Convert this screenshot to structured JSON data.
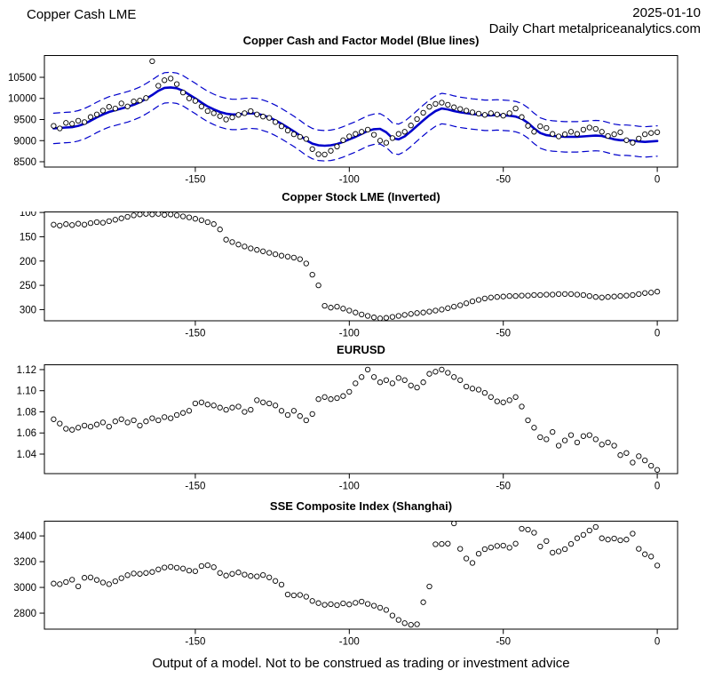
{
  "header": {
    "left_title": "Copper Cash LME",
    "date": "2025-01-10",
    "subtitle": "Daily Chart metalpriceanalytics.com"
  },
  "footer": {
    "disclaimer": "Output of a model. Not to be construed as trading or investment advice"
  },
  "colors": {
    "model_blue": "#0000CC",
    "point_stroke": "#000000",
    "axis": "#000000",
    "background": "#ffffff"
  },
  "chart_data": [
    {
      "type": "scatter",
      "title": "Copper Cash and Factor Model (Blue lines)",
      "x_start": -196,
      "x_step": 2,
      "xlim": [
        -199,
        6.6
      ],
      "ylim": [
        8374,
        11026
      ],
      "xticks": [
        -150,
        -100,
        -50,
        0
      ],
      "xtick_labels": [
        "-150",
        "-100",
        "-50",
        "0"
      ],
      "yticks": [
        8500,
        9000,
        9500,
        10000,
        10500
      ],
      "ytick_labels": [
        "8500",
        "9000",
        "9500",
        "10000",
        "10500"
      ],
      "grid": false,
      "legend": "none",
      "series": [
        {
          "name": "copper-cash-points",
          "type": "scatter",
          "color": "#000000",
          "values": [
            9350,
            9290,
            9420,
            9400,
            9470,
            9440,
            9560,
            9620,
            9710,
            9800,
            9760,
            9880,
            9810,
            9930,
            9950,
            10010,
            10880,
            10300,
            10430,
            10470,
            10340,
            10140,
            10000,
            9940,
            9810,
            9700,
            9650,
            9580,
            9500,
            9550,
            9610,
            9650,
            9700,
            9620,
            9570,
            9540,
            9440,
            9340,
            9240,
            9150,
            9090,
            9040,
            8800,
            8680,
            8670,
            8760,
            8860,
            9010,
            9100,
            9160,
            9210,
            9260,
            9140,
            9000,
            8950,
            9060,
            9160,
            9210,
            9360,
            9510,
            9660,
            9800,
            9870,
            9900,
            9850,
            9790,
            9750,
            9710,
            9670,
            9640,
            9610,
            9650,
            9620,
            9590,
            9650,
            9760,
            9560,
            9350,
            9210,
            9340,
            9300,
            9160,
            9100,
            9150,
            9210,
            9160,
            9260,
            9310,
            9280,
            9210,
            9110,
            9150,
            9200,
            9010,
            8950,
            9050,
            9150,
            9180,
            9200
          ]
        },
        {
          "name": "factor-model-line",
          "type": "line",
          "color": "#0000CC",
          "values": [
            9290,
            9300,
            9310,
            9320,
            9350,
            9400,
            9470,
            9550,
            9620,
            9680,
            9720,
            9760,
            9800,
            9850,
            9910,
            9990,
            10080,
            10180,
            10250,
            10260,
            10240,
            10180,
            10090,
            10000,
            9900,
            9810,
            9740,
            9680,
            9640,
            9620,
            9620,
            9640,
            9650,
            9640,
            9600,
            9550,
            9480,
            9400,
            9310,
            9220,
            9120,
            9010,
            8930,
            8890,
            8880,
            8890,
            8920,
            8970,
            9030,
            9090,
            9160,
            9230,
            9270,
            9280,
            9200,
            9060,
            9030,
            9100,
            9220,
            9350,
            9480,
            9600,
            9700,
            9760,
            9740,
            9700,
            9670,
            9650,
            9630,
            9615,
            9600,
            9600,
            9610,
            9600,
            9590,
            9570,
            9520,
            9420,
            9290,
            9180,
            9130,
            9110,
            9100,
            9090,
            9090,
            9090,
            9100,
            9110,
            9120,
            9110,
            9070,
            9030,
            9010,
            9010,
            9000,
            8980,
            8970,
            8980,
            8990
          ]
        },
        {
          "name": "confidence-band",
          "type": "band",
          "color": "#0000CC",
          "offset": 360,
          "base": "factor-model-line"
        }
      ]
    },
    {
      "type": "scatter",
      "title": "Copper Stock LME (Inverted)",
      "x_start": -196,
      "x_step": 2,
      "xlim": [
        -199,
        6.6
      ],
      "ylim": [
        323,
        98
      ],
      "y_inverted": true,
      "xticks": [
        -150,
        -100,
        -50,
        0
      ],
      "xtick_labels": [
        "-150",
        "-100",
        "-50",
        "0"
      ],
      "yticks": [
        100,
        150,
        200,
        250,
        300
      ],
      "ytick_labels": [
        "100",
        "150",
        "200",
        "250",
        "300"
      ],
      "grid": false,
      "legend": "none",
      "series": [
        {
          "name": "copper-stock-points",
          "type": "scatter",
          "color": "#000000",
          "values": [
            125,
            127,
            124,
            126,
            123,
            125,
            122,
            120,
            121,
            118,
            115,
            112,
            109,
            106,
            104,
            103,
            104,
            103,
            105,
            104,
            106,
            108,
            110,
            113,
            116,
            120,
            124,
            135,
            156,
            161,
            166,
            170,
            174,
            177,
            180,
            183,
            186,
            189,
            191,
            193,
            196,
            205,
            228,
            250,
            292,
            296,
            294,
            298,
            302,
            306,
            310,
            313,
            316,
            318,
            317,
            315,
            313,
            311,
            309,
            307,
            306,
            304,
            302,
            300,
            297,
            294,
            291,
            287,
            283,
            280,
            277,
            275,
            274,
            273,
            272,
            272,
            271,
            271,
            270,
            270,
            269,
            269,
            268,
            268,
            268,
            269,
            270,
            272,
            274,
            275,
            274,
            273,
            272,
            271,
            270,
            268,
            266,
            265,
            263
          ]
        }
      ]
    },
    {
      "type": "scatter",
      "title": "EURUSD",
      "x_start": -196,
      "x_step": 2,
      "xlim": [
        -199,
        6.6
      ],
      "ylim": [
        1.0215,
        1.125
      ],
      "xticks": [
        -150,
        -100,
        -50,
        0
      ],
      "xtick_labels": [
        "-150",
        "-100",
        "-50",
        "0"
      ],
      "yticks": [
        1.04,
        1.06,
        1.08,
        1.1,
        1.12
      ],
      "ytick_labels": [
        "1.04",
        "1.06",
        "1.08",
        "1.10",
        "1.12"
      ],
      "grid": false,
      "legend": "none",
      "series": [
        {
          "name": "eurusd-points",
          "type": "scatter",
          "color": "#000000",
          "values": [
            1.073,
            1.069,
            1.064,
            1.063,
            1.065,
            1.067,
            1.066,
            1.068,
            1.07,
            1.066,
            1.071,
            1.073,
            1.07,
            1.072,
            1.067,
            1.071,
            1.074,
            1.072,
            1.075,
            1.074,
            1.077,
            1.079,
            1.081,
            1.088,
            1.089,
            1.087,
            1.086,
            1.084,
            1.082,
            1.084,
            1.085,
            1.08,
            1.082,
            1.091,
            1.089,
            1.088,
            1.086,
            1.081,
            1.077,
            1.081,
            1.076,
            1.072,
            1.078,
            1.092,
            1.094,
            1.092,
            1.093,
            1.095,
            1.099,
            1.107,
            1.113,
            1.12,
            1.113,
            1.108,
            1.11,
            1.107,
            1.112,
            1.11,
            1.105,
            1.103,
            1.108,
            1.116,
            1.118,
            1.12,
            1.117,
            1.113,
            1.11,
            1.104,
            1.102,
            1.101,
            1.098,
            1.094,
            1.09,
            1.089,
            1.091,
            1.094,
            1.085,
            1.072,
            1.065,
            1.056,
            1.054,
            1.061,
            1.048,
            1.053,
            1.058,
            1.051,
            1.057,
            1.058,
            1.054,
            1.049,
            1.051,
            1.048,
            1.039,
            1.041,
            1.032,
            1.038,
            1.034,
            1.029,
            1.025
          ]
        }
      ]
    },
    {
      "type": "scatter",
      "title": "SSE Composite Index (Shanghai)",
      "x_start": -196,
      "x_step": 2,
      "xlim": [
        -199,
        6.6
      ],
      "ylim": [
        2676,
        3518
      ],
      "xticks": [
        -150,
        -100,
        -50,
        0
      ],
      "xtick_labels": [
        "-150",
        "-100",
        "-50",
        "0"
      ],
      "yticks": [
        2800,
        3000,
        3200,
        3400
      ],
      "ytick_labels": [
        "2800",
        "3000",
        "3200",
        "3400"
      ],
      "grid": false,
      "legend": "none",
      "series": [
        {
          "name": "sse-points",
          "type": "scatter",
          "color": "#000000",
          "values": [
            3030,
            3025,
            3042,
            3060,
            3008,
            3075,
            3078,
            3058,
            3038,
            3025,
            3048,
            3072,
            3095,
            3108,
            3105,
            3112,
            3120,
            3140,
            3155,
            3160,
            3153,
            3147,
            3131,
            3126,
            3166,
            3172,
            3157,
            3112,
            3092,
            3105,
            3116,
            3100,
            3089,
            3086,
            3096,
            3078,
            3050,
            3022,
            2945,
            2938,
            2942,
            2928,
            2895,
            2878,
            2865,
            2870,
            2862,
            2876,
            2868,
            2880,
            2890,
            2872,
            2858,
            2842,
            2825,
            2782,
            2748,
            2722,
            2710,
            2714,
            2885,
            3007,
            3335,
            3338,
            3340,
            3497,
            3300,
            3225,
            3190,
            3262,
            3297,
            3310,
            3322,
            3325,
            3308,
            3340,
            3456,
            3449,
            3425,
            3318,
            3360,
            3270,
            3280,
            3297,
            3338,
            3382,
            3408,
            3442,
            3470,
            3382,
            3372,
            3380,
            3366,
            3372,
            3418,
            3300,
            3258,
            3240,
            3170
          ]
        }
      ]
    }
  ]
}
